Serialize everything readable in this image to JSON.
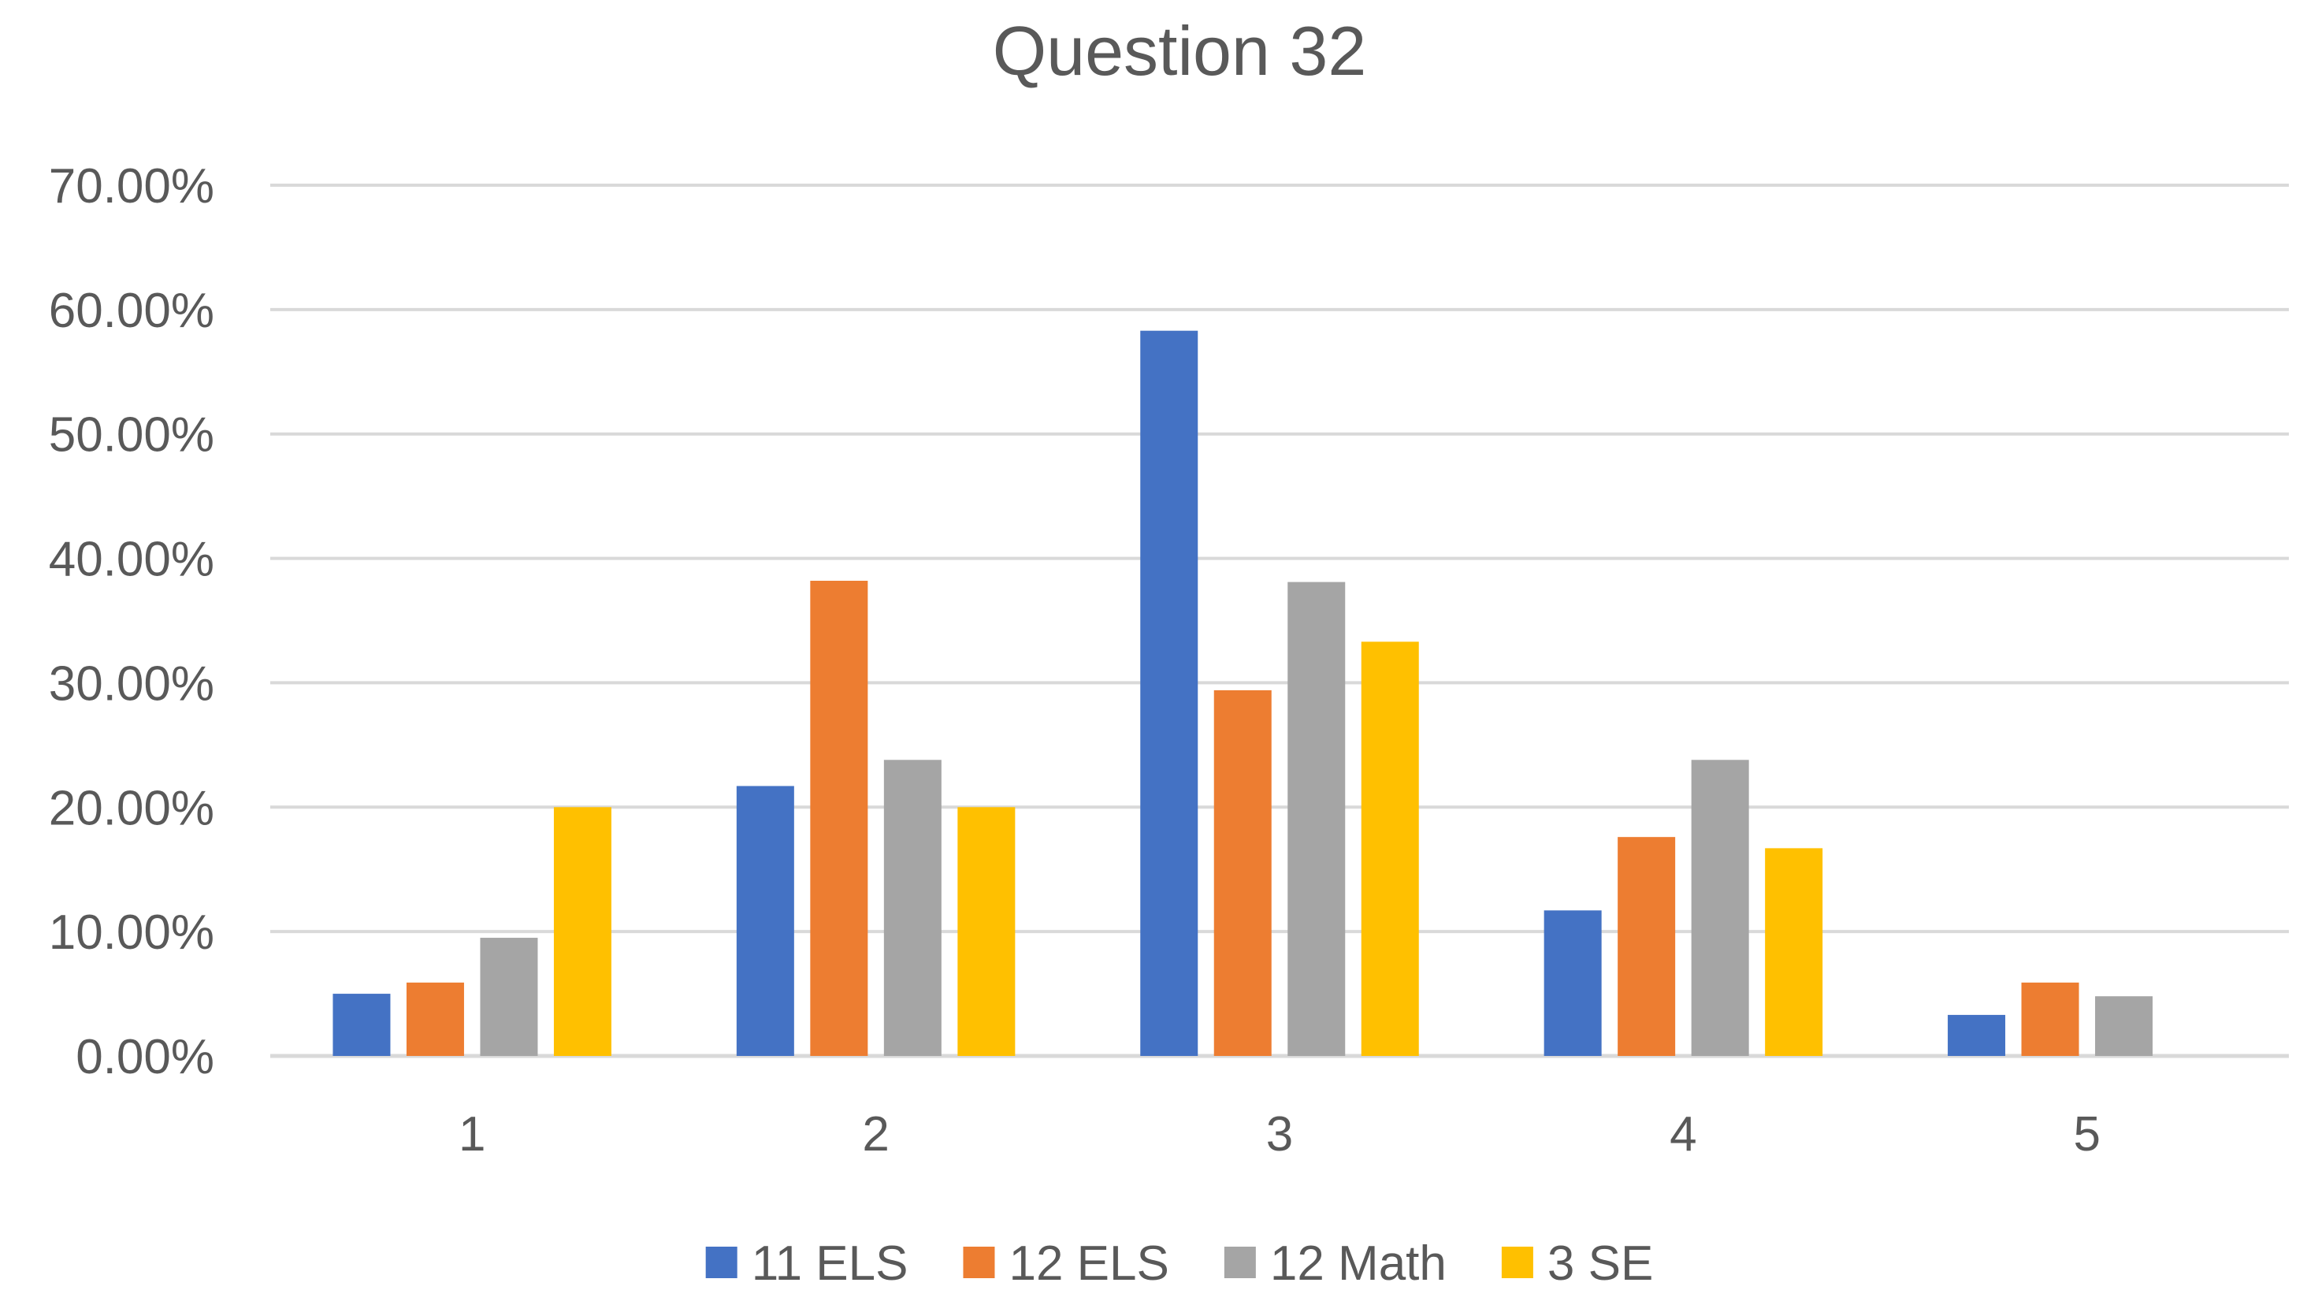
{
  "chart_data": {
    "type": "bar",
    "title": "Question 32",
    "xlabel": "",
    "ylabel": "",
    "categories": [
      "1",
      "2",
      "3",
      "4",
      "5"
    ],
    "ylim": [
      0,
      0.7
    ],
    "yticks": [
      0,
      0.1,
      0.2,
      0.3,
      0.4,
      0.5,
      0.6,
      0.7
    ],
    "ytick_labels": [
      "0.00%",
      "10.00%",
      "20.00%",
      "30.00%",
      "40.00%",
      "50.00%",
      "60.00%",
      "70.00%"
    ],
    "grid": true,
    "legend_position": "bottom",
    "series": [
      {
        "name": "11 ELS",
        "color": "#4472C4",
        "values": [
          0.05,
          0.217,
          0.583,
          0.117,
          0.033
        ]
      },
      {
        "name": "12 ELS",
        "color": "#ED7D31",
        "values": [
          0.059,
          0.382,
          0.294,
          0.176,
          0.059
        ]
      },
      {
        "name": "12 Math",
        "color": "#A5A5A5",
        "values": [
          0.095,
          0.238,
          0.381,
          0.238,
          0.048
        ]
      },
      {
        "name": "3 SE",
        "color": "#FFC000",
        "values": [
          0.2,
          0.2,
          0.333,
          0.167,
          0
        ]
      }
    ]
  }
}
